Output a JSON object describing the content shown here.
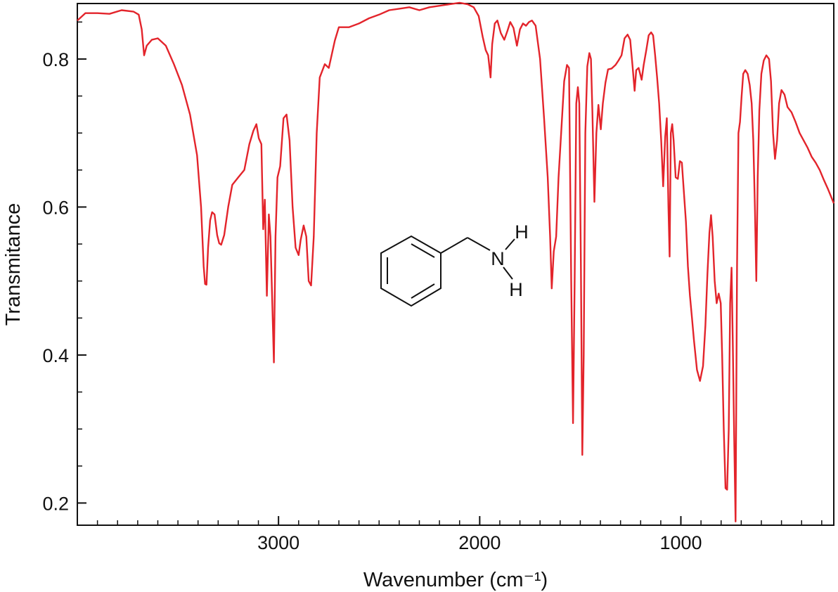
{
  "chart_data": {
    "type": "line",
    "title": "",
    "xlabel": "Wavenumber (cm⁻¹)",
    "ylabel": "Transmitance",
    "xlim": [
      4000,
      240
    ],
    "ylim": [
      0.17,
      0.875
    ],
    "x_reversed": true,
    "grid": false,
    "legend": "none",
    "x_ticks": [
      {
        "value": 3000,
        "label": "3000"
      },
      {
        "value": 2000,
        "label": "2000"
      },
      {
        "value": 1000,
        "label": "1000"
      }
    ],
    "y_ticks": [
      {
        "value": 0.2,
        "label": "0.2"
      },
      {
        "value": 0.4,
        "label": "0.4"
      },
      {
        "value": 0.6,
        "label": "0.6"
      },
      {
        "value": 0.8,
        "label": "0.8"
      }
    ],
    "series": [
      {
        "color": "#e3242b",
        "points": [
          [
            4000,
            0.852
          ],
          [
            3960,
            0.862
          ],
          [
            3900,
            0.862
          ],
          [
            3840,
            0.861
          ],
          [
            3780,
            0.866
          ],
          [
            3720,
            0.864
          ],
          [
            3695,
            0.86
          ],
          [
            3680,
            0.84
          ],
          [
            3668,
            0.805
          ],
          [
            3655,
            0.818
          ],
          [
            3630,
            0.826
          ],
          [
            3600,
            0.828
          ],
          [
            3560,
            0.818
          ],
          [
            3520,
            0.793
          ],
          [
            3480,
            0.765
          ],
          [
            3440,
            0.725
          ],
          [
            3405,
            0.67
          ],
          [
            3385,
            0.6
          ],
          [
            3372,
            0.52
          ],
          [
            3365,
            0.496
          ],
          [
            3358,
            0.495
          ],
          [
            3350,
            0.545
          ],
          [
            3340,
            0.582
          ],
          [
            3330,
            0.593
          ],
          [
            3318,
            0.59
          ],
          [
            3305,
            0.562
          ],
          [
            3295,
            0.551
          ],
          [
            3285,
            0.549
          ],
          [
            3270,
            0.562
          ],
          [
            3250,
            0.6
          ],
          [
            3230,
            0.63
          ],
          [
            3200,
            0.64
          ],
          [
            3170,
            0.65
          ],
          [
            3145,
            0.685
          ],
          [
            3125,
            0.703
          ],
          [
            3110,
            0.712
          ],
          [
            3098,
            0.693
          ],
          [
            3085,
            0.685
          ],
          [
            3076,
            0.57
          ],
          [
            3068,
            0.61
          ],
          [
            3058,
            0.48
          ],
          [
            3048,
            0.59
          ],
          [
            3040,
            0.56
          ],
          [
            3030,
            0.46
          ],
          [
            3023,
            0.39
          ],
          [
            3015,
            0.56
          ],
          [
            3005,
            0.64
          ],
          [
            2992,
            0.655
          ],
          [
            2975,
            0.72
          ],
          [
            2960,
            0.725
          ],
          [
            2945,
            0.69
          ],
          [
            2930,
            0.6
          ],
          [
            2915,
            0.545
          ],
          [
            2900,
            0.535
          ],
          [
            2890,
            0.555
          ],
          [
            2875,
            0.575
          ],
          [
            2862,
            0.56
          ],
          [
            2850,
            0.5
          ],
          [
            2838,
            0.494
          ],
          [
            2825,
            0.56
          ],
          [
            2810,
            0.7
          ],
          [
            2795,
            0.775
          ],
          [
            2770,
            0.793
          ],
          [
            2750,
            0.788
          ],
          [
            2720,
            0.825
          ],
          [
            2700,
            0.843
          ],
          [
            2650,
            0.843
          ],
          [
            2600,
            0.848
          ],
          [
            2550,
            0.855
          ],
          [
            2500,
            0.86
          ],
          [
            2450,
            0.866
          ],
          [
            2400,
            0.868
          ],
          [
            2350,
            0.87
          ],
          [
            2300,
            0.866
          ],
          [
            2250,
            0.87
          ],
          [
            2200,
            0.872
          ],
          [
            2150,
            0.874
          ],
          [
            2100,
            0.876
          ],
          [
            2060,
            0.874
          ],
          [
            2030,
            0.87
          ],
          [
            2005,
            0.858
          ],
          [
            1985,
            0.83
          ],
          [
            1970,
            0.812
          ],
          [
            1958,
            0.805
          ],
          [
            1946,
            0.775
          ],
          [
            1938,
            0.82
          ],
          [
            1925,
            0.848
          ],
          [
            1912,
            0.852
          ],
          [
            1895,
            0.835
          ],
          [
            1878,
            0.826
          ],
          [
            1862,
            0.838
          ],
          [
            1848,
            0.85
          ],
          [
            1832,
            0.842
          ],
          [
            1815,
            0.818
          ],
          [
            1800,
            0.84
          ],
          [
            1785,
            0.848
          ],
          [
            1770,
            0.845
          ],
          [
            1755,
            0.85
          ],
          [
            1740,
            0.852
          ],
          [
            1722,
            0.845
          ],
          [
            1700,
            0.8
          ],
          [
            1680,
            0.72
          ],
          [
            1662,
            0.64
          ],
          [
            1650,
            0.56
          ],
          [
            1642,
            0.49
          ],
          [
            1632,
            0.54
          ],
          [
            1620,
            0.56
          ],
          [
            1608,
            0.64
          ],
          [
            1595,
            0.7
          ],
          [
            1580,
            0.77
          ],
          [
            1566,
            0.792
          ],
          [
            1556,
            0.788
          ],
          [
            1545,
            0.5
          ],
          [
            1536,
            0.308
          ],
          [
            1528,
            0.5
          ],
          [
            1520,
            0.74
          ],
          [
            1512,
            0.762
          ],
          [
            1505,
            0.74
          ],
          [
            1497,
            0.52
          ],
          [
            1490,
            0.265
          ],
          [
            1483,
            0.4
          ],
          [
            1475,
            0.7
          ],
          [
            1465,
            0.79
          ],
          [
            1455,
            0.808
          ],
          [
            1447,
            0.8
          ],
          [
            1440,
            0.73
          ],
          [
            1430,
            0.607
          ],
          [
            1420,
            0.7
          ],
          [
            1410,
            0.738
          ],
          [
            1398,
            0.705
          ],
          [
            1388,
            0.74
          ],
          [
            1375,
            0.768
          ],
          [
            1362,
            0.786
          ],
          [
            1345,
            0.787
          ],
          [
            1325,
            0.792
          ],
          [
            1310,
            0.798
          ],
          [
            1295,
            0.805
          ],
          [
            1280,
            0.828
          ],
          [
            1265,
            0.833
          ],
          [
            1252,
            0.826
          ],
          [
            1240,
            0.79
          ],
          [
            1230,
            0.757
          ],
          [
            1222,
            0.785
          ],
          [
            1210,
            0.788
          ],
          [
            1195,
            0.772
          ],
          [
            1185,
            0.792
          ],
          [
            1172,
            0.812
          ],
          [
            1160,
            0.832
          ],
          [
            1148,
            0.836
          ],
          [
            1138,
            0.832
          ],
          [
            1128,
            0.805
          ],
          [
            1118,
            0.775
          ],
          [
            1108,
            0.74
          ],
          [
            1098,
            0.69
          ],
          [
            1088,
            0.628
          ],
          [
            1078,
            0.695
          ],
          [
            1070,
            0.72
          ],
          [
            1062,
            0.6
          ],
          [
            1056,
            0.533
          ],
          [
            1050,
            0.7
          ],
          [
            1043,
            0.712
          ],
          [
            1036,
            0.69
          ],
          [
            1026,
            0.64
          ],
          [
            1015,
            0.638
          ],
          [
            1005,
            0.662
          ],
          [
            995,
            0.66
          ],
          [
            985,
            0.62
          ],
          [
            975,
            0.58
          ],
          [
            965,
            0.52
          ],
          [
            955,
            0.48
          ],
          [
            945,
            0.45
          ],
          [
            935,
            0.42
          ],
          [
            920,
            0.38
          ],
          [
            905,
            0.365
          ],
          [
            890,
            0.385
          ],
          [
            878,
            0.44
          ],
          [
            868,
            0.51
          ],
          [
            858,
            0.565
          ],
          [
            850,
            0.589
          ],
          [
            842,
            0.56
          ],
          [
            832,
            0.5
          ],
          [
            822,
            0.47
          ],
          [
            812,
            0.483
          ],
          [
            802,
            0.47
          ],
          [
            795,
            0.4
          ],
          [
            787,
            0.3
          ],
          [
            778,
            0.22
          ],
          [
            770,
            0.218
          ],
          [
            762,
            0.3
          ],
          [
            755,
            0.47
          ],
          [
            748,
            0.518
          ],
          [
            742,
            0.42
          ],
          [
            735,
            0.29
          ],
          [
            728,
            0.175
          ],
          [
            721,
            0.52
          ],
          [
            714,
            0.7
          ],
          [
            706,
            0.715
          ],
          [
            698,
            0.75
          ],
          [
            690,
            0.78
          ],
          [
            680,
            0.785
          ],
          [
            668,
            0.78
          ],
          [
            658,
            0.765
          ],
          [
            648,
            0.74
          ],
          [
            640,
            0.69
          ],
          [
            632,
            0.6
          ],
          [
            625,
            0.5
          ],
          [
            618,
            0.64
          ],
          [
            610,
            0.73
          ],
          [
            600,
            0.78
          ],
          [
            588,
            0.798
          ],
          [
            575,
            0.805
          ],
          [
            562,
            0.8
          ],
          [
            552,
            0.77
          ],
          [
            542,
            0.7
          ],
          [
            532,
            0.665
          ],
          [
            522,
            0.69
          ],
          [
            512,
            0.74
          ],
          [
            500,
            0.758
          ],
          [
            485,
            0.752
          ],
          [
            470,
            0.735
          ],
          [
            450,
            0.728
          ],
          [
            430,
            0.715
          ],
          [
            410,
            0.7
          ],
          [
            390,
            0.69
          ],
          [
            370,
            0.68
          ],
          [
            350,
            0.668
          ],
          [
            330,
            0.66
          ],
          [
            310,
            0.65
          ],
          [
            290,
            0.637
          ],
          [
            270,
            0.625
          ],
          [
            255,
            0.615
          ],
          [
            240,
            0.605
          ]
        ]
      }
    ],
    "inset_structure": {
      "name": "benzylamine",
      "atom_labels": [
        "N",
        "H",
        "H"
      ]
    }
  }
}
